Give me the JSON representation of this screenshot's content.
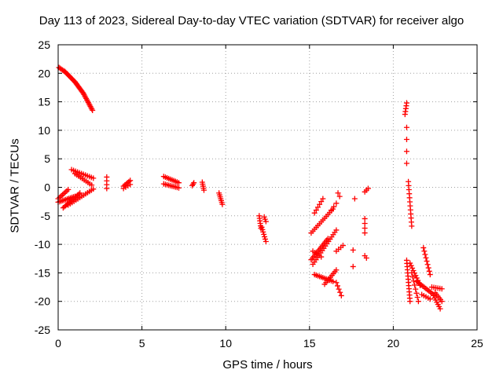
{
  "chart_data": {
    "type": "scatter",
    "title": "Day 113 of 2023, Sidereal Day-to-day VTEC variation (SDTVAR) for receiver algo",
    "xlabel": "GPS time / hours",
    "ylabel": "SDTVAR / TECUs",
    "xlim": [
      0,
      25
    ],
    "ylim": [
      -25,
      25
    ],
    "xticks": [
      0,
      5,
      10,
      15,
      20,
      25
    ],
    "yticks": [
      -25,
      -20,
      -15,
      -10,
      -5,
      0,
      5,
      10,
      15,
      20,
      25
    ],
    "grid": true,
    "marker": "+",
    "color": "#ff0000",
    "segments": [
      {
        "from": [
          0.05,
          21.0
        ],
        "to": [
          0.4,
          20.3
        ],
        "n": 6
      },
      {
        "from": [
          0.4,
          20.3
        ],
        "to": [
          1.0,
          18.5
        ],
        "n": 12
      },
      {
        "from": [
          1.0,
          18.5
        ],
        "to": [
          1.5,
          16.5
        ],
        "n": 12
      },
      {
        "from": [
          1.5,
          16.5
        ],
        "to": [
          2.05,
          13.5
        ],
        "n": 14
      },
      {
        "from": [
          0.0,
          -2.0
        ],
        "to": [
          0.6,
          -0.4
        ],
        "n": 8
      },
      {
        "from": [
          0.0,
          -2.6
        ],
        "to": [
          1.0,
          -1.6
        ],
        "n": 12
      },
      {
        "from": [
          0.3,
          -3.6
        ],
        "to": [
          1.3,
          -1.0
        ],
        "n": 14
      },
      {
        "from": [
          0.6,
          -3.1
        ],
        "to": [
          2.1,
          -0.3
        ],
        "n": 14
      },
      {
        "from": [
          0.8,
          3.1
        ],
        "to": [
          2.1,
          1.6
        ],
        "n": 12
      },
      {
        "from": [
          1.0,
          2.4
        ],
        "to": [
          2.0,
          0.4
        ],
        "n": 10
      },
      {
        "from": [
          2.9,
          1.8
        ],
        "to": [
          2.9,
          -0.2
        ],
        "n": 4
      },
      {
        "from": [
          3.9,
          0.2
        ],
        "to": [
          4.3,
          1.2
        ],
        "n": 6
      },
      {
        "from": [
          3.9,
          -0.2
        ],
        "to": [
          4.3,
          0.5
        ],
        "n": 4
      },
      {
        "from": [
          6.3,
          1.9
        ],
        "to": [
          7.2,
          0.8
        ],
        "n": 10
      },
      {
        "from": [
          6.3,
          0.6
        ],
        "to": [
          7.2,
          -0.1
        ],
        "n": 10
      },
      {
        "from": [
          8.0,
          0.3
        ],
        "to": [
          8.1,
          0.8
        ],
        "n": 3
      },
      {
        "from": [
          8.6,
          0.9
        ],
        "to": [
          8.7,
          -0.5
        ],
        "n": 5
      },
      {
        "from": [
          9.6,
          -1.0
        ],
        "to": [
          9.8,
          -3.0
        ],
        "n": 7
      },
      {
        "from": [
          12.0,
          -5.0
        ],
        "to": [
          12.1,
          -7.2
        ],
        "n": 6
      },
      {
        "from": [
          12.15,
          -7.0
        ],
        "to": [
          12.4,
          -9.5
        ],
        "n": 7
      },
      {
        "from": [
          12.3,
          -5.2
        ],
        "to": [
          12.4,
          -6.0
        ],
        "n": 3
      },
      {
        "from": [
          15.3,
          -4.5
        ],
        "to": [
          15.8,
          -2.0
        ],
        "n": 6
      },
      {
        "from": [
          15.1,
          -8.0
        ],
        "to": [
          16.4,
          -3.8
        ],
        "n": 14
      },
      {
        "from": [
          16.3,
          -4.0
        ],
        "to": [
          16.6,
          -2.8
        ],
        "n": 3
      },
      {
        "from": [
          15.1,
          -12.7
        ],
        "to": [
          16.1,
          -9.0
        ],
        "n": 14
      },
      {
        "from": [
          15.2,
          -11.2
        ],
        "to": [
          15.7,
          -12.2
        ],
        "n": 5
      },
      {
        "from": [
          15.2,
          -13.5
        ],
        "to": [
          16.6,
          -7.5
        ],
        "n": 16
      },
      {
        "from": [
          15.3,
          -15.3
        ],
        "to": [
          16.4,
          -16.5
        ],
        "n": 12
      },
      {
        "from": [
          15.9,
          -17.0
        ],
        "to": [
          16.6,
          -14.5
        ],
        "n": 9
      },
      {
        "from": [
          16.6,
          -16.7
        ],
        "to": [
          16.9,
          -19.0
        ],
        "n": 5
      },
      {
        "from": [
          16.6,
          -11.2
        ],
        "to": [
          17.0,
          -10.2
        ],
        "n": 4
      },
      {
        "from": [
          16.7,
          -1.0
        ],
        "to": [
          16.8,
          -1.6
        ],
        "n": 2
      },
      {
        "from": [
          17.6,
          -11.0
        ],
        "to": [
          17.6,
          -13.9
        ],
        "n": 2
      },
      {
        "from": [
          17.7,
          -2.0
        ],
        "to": [
          17.7,
          -2.0
        ],
        "n": 1
      },
      {
        "from": [
          18.3,
          -5.5
        ],
        "to": [
          18.3,
          -8.0
        ],
        "n": 4
      },
      {
        "from": [
          18.3,
          -12.0
        ],
        "to": [
          18.4,
          -12.4
        ],
        "n": 2
      },
      {
        "from": [
          18.3,
          -0.8
        ],
        "to": [
          18.5,
          -0.2
        ],
        "n": 3
      },
      {
        "from": [
          20.8,
          14.8
        ],
        "to": [
          20.7,
          12.8
        ],
        "n": 5
      },
      {
        "from": [
          20.8,
          10.5
        ],
        "to": [
          20.8,
          4.2
        ],
        "n": 4
      },
      {
        "from": [
          20.9,
          1.0
        ],
        "to": [
          21.1,
          -6.8
        ],
        "n": 12
      },
      {
        "from": [
          20.8,
          -12.8
        ],
        "to": [
          21.0,
          -20.0
        ],
        "n": 14
      },
      {
        "from": [
          21.0,
          -13.3
        ],
        "to": [
          21.6,
          -17.2
        ],
        "n": 10
      },
      {
        "from": [
          21.1,
          -15.0
        ],
        "to": [
          21.5,
          -20.0
        ],
        "n": 8
      },
      {
        "from": [
          21.4,
          -16.5
        ],
        "to": [
          22.4,
          -18.8
        ],
        "n": 12
      },
      {
        "from": [
          21.8,
          -10.6
        ],
        "to": [
          22.2,
          -15.3
        ],
        "n": 9
      },
      {
        "from": [
          21.7,
          -18.8
        ],
        "to": [
          22.2,
          -19.6
        ],
        "n": 5
      },
      {
        "from": [
          22.3,
          -17.5
        ],
        "to": [
          22.9,
          -17.8
        ],
        "n": 6
      },
      {
        "from": [
          22.4,
          -19.0
        ],
        "to": [
          22.8,
          -21.3
        ],
        "n": 7
      },
      {
        "from": [
          22.5,
          -18.5
        ],
        "to": [
          22.9,
          -20.0
        ],
        "n": 6
      }
    ]
  }
}
